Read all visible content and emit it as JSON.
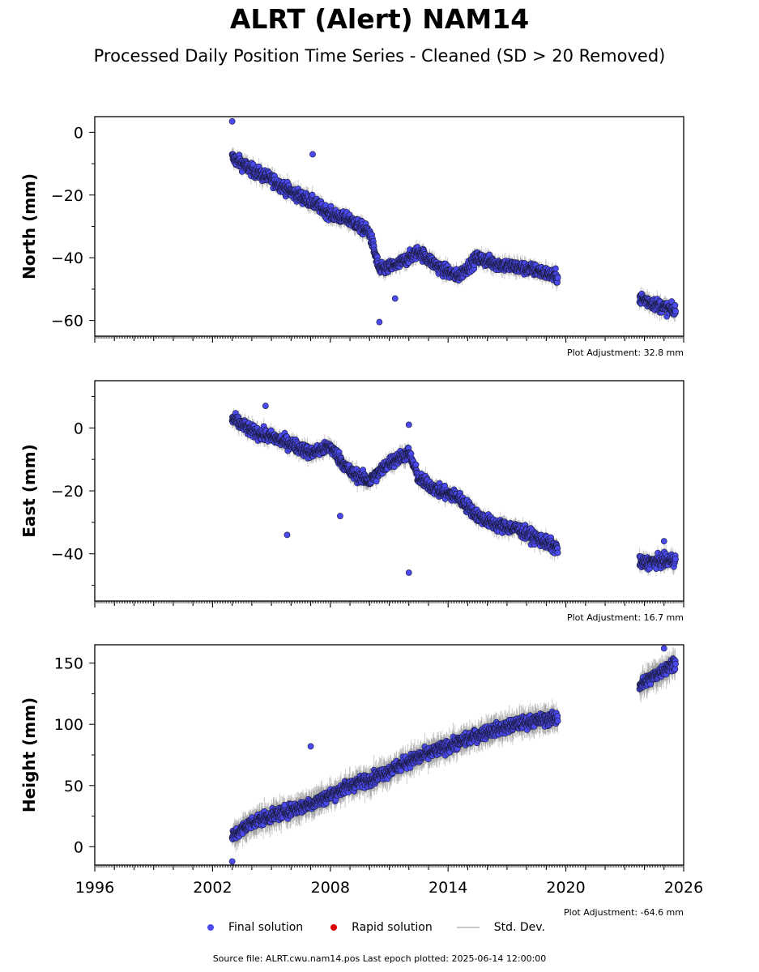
{
  "title": "ALRT (Alert) NAM14",
  "subtitle": "Processed Daily Position Time Series - Cleaned (SD > 20 Removed)",
  "colors": {
    "final": "#4a4af0",
    "rapid": "#dd0000",
    "std": "#c8c8c8",
    "edge": "#1a1a3a"
  },
  "legend": {
    "final_label": "Final solution",
    "rapid_label": "Rapid solution",
    "std_label": "Std. Dev."
  },
  "source_note": "Source file: ALRT.cwu.nam14.pos  Last epoch plotted: 2025-06-14 12:00:00",
  "chart_data": [
    {
      "type": "scatter",
      "ylabel": "North (mm)",
      "adjustment_label": "Plot Adjustment: 32.8 mm",
      "xlim": [
        1996,
        2026
      ],
      "ylim": [
        -65,
        5
      ],
      "yticks": [
        0,
        -20,
        -40,
        -60
      ],
      "ytick_labels": [
        "0",
        "−20",
        "−40",
        "−60"
      ],
      "trend": [
        [
          2003.0,
          -8
        ],
        [
          2004.0,
          -12
        ],
        [
          2005.0,
          -15
        ],
        [
          2006.0,
          -19
        ],
        [
          2007.0,
          -22
        ],
        [
          2008.0,
          -26
        ],
        [
          2009.0,
          -28
        ],
        [
          2010.0,
          -32
        ],
        [
          2010.5,
          -44
        ],
        [
          2011.5,
          -42
        ],
        [
          2012.5,
          -38
        ],
        [
          2013.5,
          -43
        ],
        [
          2014.5,
          -46
        ],
        [
          2015.5,
          -40
        ],
        [
          2016.5,
          -42
        ],
        [
          2017.5,
          -43
        ],
        [
          2018.5,
          -44
        ],
        [
          2019.5,
          -46
        ],
        [
          2023.8,
          -53
        ],
        [
          2025.5,
          -57
        ]
      ],
      "outliers": [
        [
          2010.5,
          -60.5
        ],
        [
          2007.1,
          -7
        ],
        [
          2003.0,
          3.5
        ],
        [
          2011.3,
          -53
        ]
      ]
    },
    {
      "type": "scatter",
      "ylabel": "East (mm)",
      "adjustment_label": "Plot Adjustment: 16.7 mm",
      "xlim": [
        1996,
        2026
      ],
      "ylim": [
        -55,
        15
      ],
      "yticks": [
        0,
        -20,
        -40
      ],
      "ytick_labels": [
        "0",
        "−20",
        "−40"
      ],
      "trend": [
        [
          2003.0,
          3
        ],
        [
          2004.0,
          -1
        ],
        [
          2005.0,
          -3
        ],
        [
          2006.0,
          -5
        ],
        [
          2007.0,
          -8
        ],
        [
          2008.0,
          -6
        ],
        [
          2009.0,
          -14
        ],
        [
          2010.0,
          -17
        ],
        [
          2011.0,
          -11
        ],
        [
          2012.0,
          -8
        ],
        [
          2012.5,
          -16
        ],
        [
          2013.5,
          -20
        ],
        [
          2014.5,
          -22
        ],
        [
          2015.5,
          -28
        ],
        [
          2016.5,
          -31
        ],
        [
          2017.5,
          -32
        ],
        [
          2018.5,
          -35
        ],
        [
          2019.5,
          -38
        ],
        [
          2023.8,
          -43
        ],
        [
          2025.5,
          -42
        ]
      ],
      "outliers": [
        [
          2005.8,
          -34
        ],
        [
          2012.0,
          -46
        ],
        [
          2008.5,
          -28
        ],
        [
          2004.7,
          7
        ],
        [
          2012.0,
          1
        ],
        [
          2025.0,
          -36
        ]
      ]
    },
    {
      "type": "scatter",
      "ylabel": "Height (mm)",
      "adjustment_label": "Plot Adjustment: -64.6 mm",
      "xlim": [
        1996,
        2026
      ],
      "ylim": [
        -15,
        165
      ],
      "yticks": [
        150,
        100,
        50,
        0
      ],
      "ytick_labels": [
        "150",
        "100",
        "50",
        "0"
      ],
      "xticks": [
        1996,
        2002,
        2008,
        2014,
        2020,
        2026
      ],
      "xtick_labels": [
        "1996",
        "2002",
        "2008",
        "2014",
        "2020",
        "2026"
      ],
      "trend": [
        [
          2003.0,
          8
        ],
        [
          2004.0,
          20
        ],
        [
          2005.0,
          25
        ],
        [
          2006.0,
          30
        ],
        [
          2007.0,
          35
        ],
        [
          2008.0,
          42
        ],
        [
          2009.0,
          50
        ],
        [
          2010.0,
          55
        ],
        [
          2011.0,
          62
        ],
        [
          2012.0,
          70
        ],
        [
          2013.0,
          76
        ],
        [
          2014.0,
          82
        ],
        [
          2015.0,
          88
        ],
        [
          2016.0,
          94
        ],
        [
          2017.0,
          98
        ],
        [
          2018.0,
          102
        ],
        [
          2019.5,
          105
        ],
        [
          2023.8,
          132
        ],
        [
          2025.5,
          150
        ]
      ],
      "outliers": [
        [
          2007.0,
          82
        ],
        [
          2003.0,
          -12
        ],
        [
          2025.0,
          162
        ]
      ]
    }
  ]
}
